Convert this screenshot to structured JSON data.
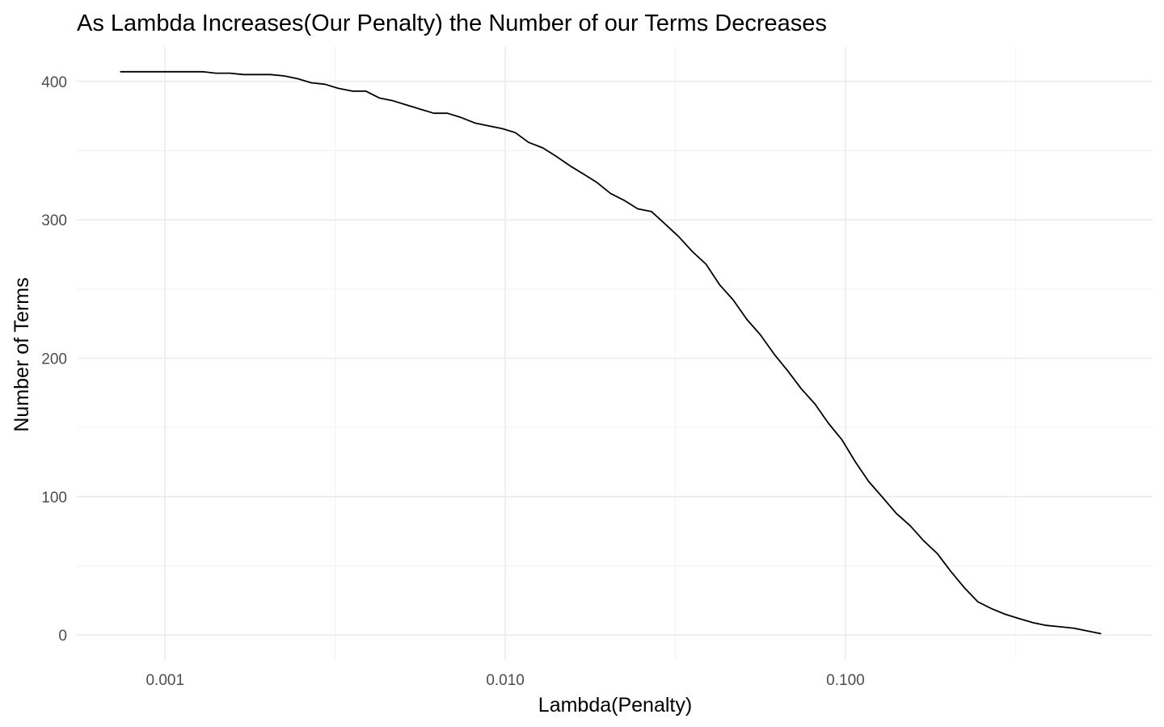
{
  "chart_data": {
    "type": "line",
    "title": "As Lambda Increases(Our Penalty) the Number of our Terms Decreases",
    "xlabel": "Lambda(Penalty)",
    "ylabel": "Number of Terms",
    "x_scale": "log10",
    "xlim": [
      0.00055,
      0.8
    ],
    "ylim": [
      -18,
      425
    ],
    "x_ticks": [
      0.001,
      0.01,
      0.1
    ],
    "x_tick_labels": [
      "0.001",
      "0.010",
      "0.100"
    ],
    "x_minor_ticks": [
      0.00316,
      0.0316,
      0.316
    ],
    "y_ticks": [
      0,
      100,
      200,
      300,
      400
    ],
    "y_tick_labels": [
      "0",
      "100",
      "200",
      "300",
      "400"
    ],
    "y_minor_ticks": [
      50,
      150,
      250,
      350
    ],
    "grid": true,
    "legend": "none",
    "line_color": "#000000",
    "series": [
      {
        "x": [
          0.00074,
          0.00081,
          0.00089,
          0.00098,
          0.00107,
          0.00117,
          0.00129,
          0.00141,
          0.00155,
          0.0017,
          0.00186,
          0.00204,
          0.00224,
          0.00245,
          0.00269,
          0.00295,
          0.00323,
          0.00355,
          0.00389,
          0.00427,
          0.00468,
          0.00513,
          0.00562,
          0.00617,
          0.00676,
          0.00741,
          0.00813,
          0.00891,
          0.00977,
          0.0107,
          0.0117,
          0.0129,
          0.0141,
          0.0155,
          0.017,
          0.0186,
          0.0204,
          0.0224,
          0.0245,
          0.0269,
          0.0295,
          0.0323,
          0.0355,
          0.0389,
          0.0427,
          0.0468,
          0.0513,
          0.0562,
          0.0617,
          0.0676,
          0.0741,
          0.0813,
          0.0891,
          0.0977,
          0.107,
          0.117,
          0.129,
          0.141,
          0.155,
          0.17,
          0.186,
          0.204,
          0.224,
          0.245,
          0.269,
          0.295,
          0.323,
          0.355,
          0.389,
          0.427,
          0.468,
          0.513,
          0.562
        ],
        "y": [
          407,
          407,
          407,
          407,
          407,
          407,
          407,
          406,
          406,
          405,
          405,
          405,
          404,
          402,
          399,
          398,
          395,
          393,
          393,
          388,
          386,
          383,
          380,
          377,
          377,
          374,
          370,
          368,
          366,
          363,
          356,
          352,
          346,
          339,
          333,
          327,
          319,
          314,
          308,
          306,
          297,
          288,
          277,
          268,
          253,
          242,
          228,
          217,
          203,
          191,
          178,
          167,
          153,
          141,
          125,
          111,
          99,
          88,
          79,
          68,
          59,
          46,
          34,
          24,
          19,
          15,
          12,
          9,
          7,
          6,
          5,
          3,
          1
        ]
      }
    ]
  }
}
